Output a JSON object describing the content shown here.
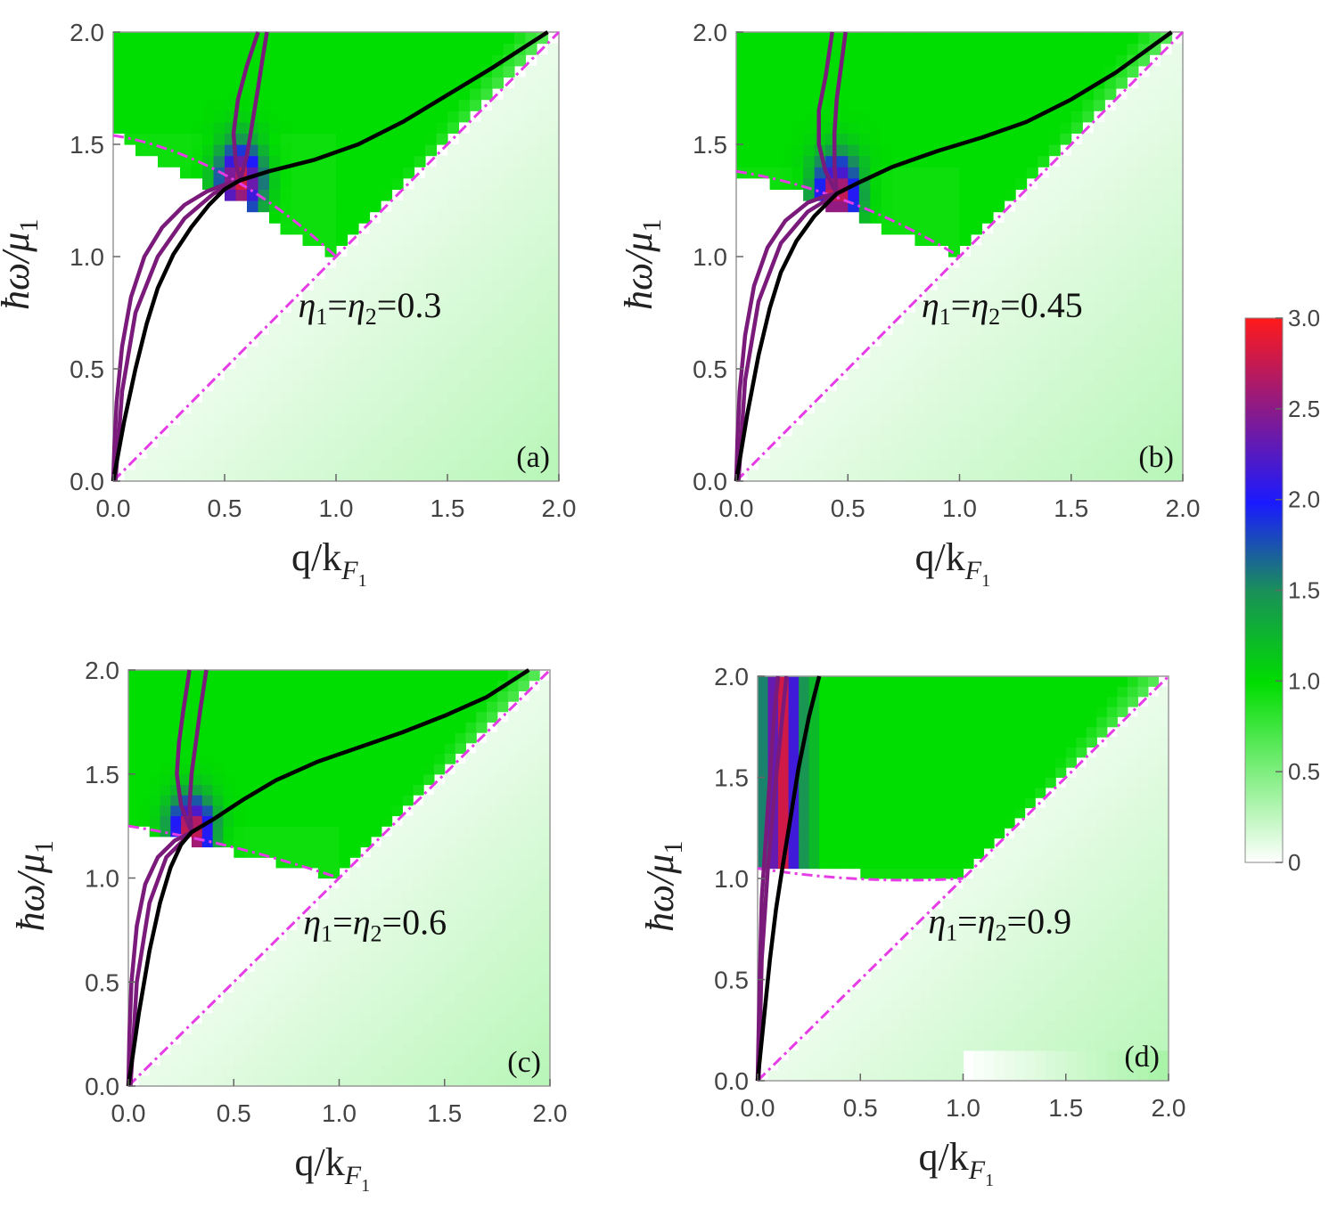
{
  "figure": {
    "colorbar": {
      "min": 0,
      "max": 3.0,
      "ticks": [
        "0",
        "0.5",
        "1.0",
        "1.5",
        "2.0",
        "2.5",
        "3.0"
      ]
    }
  },
  "colors": {
    "boundary": "#e63ce6",
    "purple_curve": "#7a1a7a",
    "black_curve": "#000000",
    "green": "#00e000",
    "blue": "#1a1aff",
    "red": "#ff1a1a"
  },
  "chart_data": [
    {
      "type": "heatmap",
      "panel_label": "(a)",
      "annotation": {
        "eta_sym1": "η",
        "sub1": "1",
        "eq1": "=",
        "eta_sym2": "η",
        "sub2": "2",
        "eq2": "=",
        "value": "0.3"
      },
      "xlabel": {
        "main": "q/k",
        "sub": "F",
        "subsub": "1"
      },
      "ylabel": {
        "main": "ħω/μ",
        "sub": "1"
      },
      "xlim": [
        0,
        2
      ],
      "ylim": [
        0,
        2
      ],
      "xticks": [
        "0.0",
        "0.5",
        "1.0",
        "1.5",
        "2.0"
      ],
      "yticks": [
        "0.0",
        "0.5",
        "1.0",
        "1.5",
        "2.0"
      ],
      "threshold_w0": 1.54,
      "crossing": [
        0.57,
        1.34
      ],
      "purple_curve": [
        [
          0.0,
          0.0
        ],
        [
          0.005,
          0.15
        ],
        [
          0.015,
          0.35
        ],
        [
          0.04,
          0.6
        ],
        [
          0.08,
          0.82
        ],
        [
          0.14,
          1.0
        ],
        [
          0.22,
          1.13
        ],
        [
          0.32,
          1.23
        ],
        [
          0.42,
          1.29
        ],
        [
          0.5,
          1.32
        ],
        [
          0.57,
          1.34
        ],
        [
          0.6,
          1.45
        ],
        [
          0.625,
          1.6
        ],
        [
          0.65,
          1.75
        ],
        [
          0.67,
          1.88
        ],
        [
          0.69,
          2.0
        ]
      ],
      "purple_curve2": [
        [
          0.01,
          0.0
        ],
        [
          0.04,
          0.4
        ],
        [
          0.1,
          0.75
        ],
        [
          0.2,
          1.0
        ],
        [
          0.32,
          1.17
        ],
        [
          0.45,
          1.28
        ],
        [
          0.57,
          1.34
        ],
        [
          0.55,
          1.42
        ],
        [
          0.54,
          1.55
        ],
        [
          0.56,
          1.7
        ],
        [
          0.6,
          1.85
        ],
        [
          0.65,
          2.0
        ]
      ],
      "black_curve": [
        [
          0.0,
          0.0
        ],
        [
          0.05,
          0.27
        ],
        [
          0.1,
          0.5
        ],
        [
          0.15,
          0.7
        ],
        [
          0.2,
          0.86
        ],
        [
          0.27,
          1.01
        ],
        [
          0.35,
          1.13
        ],
        [
          0.43,
          1.23
        ],
        [
          0.5,
          1.3
        ],
        [
          0.57,
          1.34
        ],
        [
          0.7,
          1.38
        ],
        [
          0.9,
          1.43
        ],
        [
          1.1,
          1.5
        ],
        [
          1.3,
          1.6
        ],
        [
          1.5,
          1.72
        ],
        [
          1.7,
          1.84
        ],
        [
          1.95,
          2.0
        ]
      ]
    },
    {
      "type": "heatmap",
      "panel_label": "(b)",
      "annotation": {
        "eta_sym1": "η",
        "sub1": "1",
        "eq1": "=",
        "eta_sym2": "η",
        "sub2": "2",
        "eq2": "=",
        "value": "0.45"
      },
      "xlabel": {
        "main": "q/k",
        "sub": "F",
        "subsub": "1"
      },
      "ylabel": {
        "main": "ħω/μ",
        "sub": "1"
      },
      "xlim": [
        0,
        2
      ],
      "ylim": [
        0,
        2
      ],
      "xticks": [
        "0.0",
        "0.5",
        "1.0",
        "1.5",
        "2.0"
      ],
      "yticks": [
        "0.0",
        "0.5",
        "1.0",
        "1.5",
        "2.0"
      ],
      "threshold_w0": 1.38,
      "crossing": [
        0.45,
        1.28
      ],
      "purple_curve": [
        [
          0.0,
          0.0
        ],
        [
          0.005,
          0.18
        ],
        [
          0.015,
          0.4
        ],
        [
          0.04,
          0.65
        ],
        [
          0.08,
          0.87
        ],
        [
          0.14,
          1.04
        ],
        [
          0.22,
          1.16
        ],
        [
          0.32,
          1.24
        ],
        [
          0.4,
          1.27
        ],
        [
          0.45,
          1.28
        ],
        [
          0.44,
          1.4
        ],
        [
          0.44,
          1.55
        ],
        [
          0.45,
          1.7
        ],
        [
          0.47,
          1.85
        ],
        [
          0.49,
          2.0
        ]
      ],
      "purple_curve2": [
        [
          0.01,
          0.0
        ],
        [
          0.04,
          0.45
        ],
        [
          0.1,
          0.8
        ],
        [
          0.2,
          1.06
        ],
        [
          0.32,
          1.2
        ],
        [
          0.45,
          1.28
        ],
        [
          0.4,
          1.38
        ],
        [
          0.37,
          1.5
        ],
        [
          0.37,
          1.65
        ],
        [
          0.4,
          1.8
        ],
        [
          0.43,
          2.0
        ]
      ],
      "black_curve": [
        [
          0.0,
          0.0
        ],
        [
          0.05,
          0.3
        ],
        [
          0.1,
          0.56
        ],
        [
          0.15,
          0.77
        ],
        [
          0.2,
          0.93
        ],
        [
          0.27,
          1.07
        ],
        [
          0.35,
          1.18
        ],
        [
          0.45,
          1.28
        ],
        [
          0.55,
          1.33
        ],
        [
          0.7,
          1.4
        ],
        [
          0.9,
          1.47
        ],
        [
          1.1,
          1.53
        ],
        [
          1.3,
          1.6
        ],
        [
          1.5,
          1.7
        ],
        [
          1.7,
          1.82
        ],
        [
          1.95,
          2.0
        ]
      ]
    },
    {
      "type": "heatmap",
      "panel_label": "(c)",
      "annotation": {
        "eta_sym1": "η",
        "sub1": "1",
        "eq1": "=",
        "eta_sym2": "η",
        "sub2": "2",
        "eq2": "=",
        "value": "0.6"
      },
      "xlabel": {
        "main": "q/k",
        "sub": "F",
        "subsub": "1"
      },
      "ylabel": {
        "main": "ħω/μ",
        "sub": "1"
      },
      "xlim": [
        0,
        2
      ],
      "ylim": [
        0,
        2
      ],
      "xticks": [
        "0.0",
        "0.5",
        "1.0",
        "1.5",
        "2.0"
      ],
      "yticks": [
        "0.0",
        "0.5",
        "1.0",
        "1.5",
        "2.0"
      ],
      "threshold_w0": 1.25,
      "crossing": [
        0.3,
        1.22
      ],
      "purple_curve": [
        [
          0.0,
          0.0
        ],
        [
          0.005,
          0.25
        ],
        [
          0.015,
          0.5
        ],
        [
          0.04,
          0.77
        ],
        [
          0.08,
          0.97
        ],
        [
          0.14,
          1.1
        ],
        [
          0.22,
          1.18
        ],
        [
          0.3,
          1.22
        ],
        [
          0.29,
          1.35
        ],
        [
          0.3,
          1.5
        ],
        [
          0.32,
          1.65
        ],
        [
          0.34,
          1.8
        ],
        [
          0.37,
          2.0
        ]
      ],
      "purple_curve2": [
        [
          0.01,
          0.0
        ],
        [
          0.04,
          0.5
        ],
        [
          0.1,
          0.88
        ],
        [
          0.18,
          1.1
        ],
        [
          0.3,
          1.22
        ],
        [
          0.25,
          1.35
        ],
        [
          0.23,
          1.5
        ],
        [
          0.24,
          1.65
        ],
        [
          0.26,
          1.8
        ],
        [
          0.29,
          2.0
        ]
      ],
      "black_curve": [
        [
          0.0,
          0.0
        ],
        [
          0.05,
          0.35
        ],
        [
          0.1,
          0.65
        ],
        [
          0.15,
          0.88
        ],
        [
          0.2,
          1.05
        ],
        [
          0.25,
          1.16
        ],
        [
          0.3,
          1.22
        ],
        [
          0.4,
          1.28
        ],
        [
          0.55,
          1.38
        ],
        [
          0.7,
          1.47
        ],
        [
          0.9,
          1.56
        ],
        [
          1.1,
          1.63
        ],
        [
          1.3,
          1.7
        ],
        [
          1.5,
          1.78
        ],
        [
          1.7,
          1.87
        ],
        [
          1.9,
          2.0
        ]
      ]
    },
    {
      "type": "heatmap",
      "panel_label": "(d)",
      "annotation": {
        "eta_sym1": "η",
        "sub1": "1",
        "eq1": "=",
        "eta_sym2": "η",
        "sub2": "2",
        "eq2": "=",
        "value": "0.9"
      },
      "xlabel": {
        "main": "q/k",
        "sub": "F",
        "subsub": "1"
      },
      "ylabel": {
        "main": "ħω/μ",
        "sub": "1"
      },
      "xlim": [
        0,
        2
      ],
      "ylim": [
        0,
        2
      ],
      "xticks": [
        "0.0",
        "0.5",
        "1.0",
        "1.5",
        "2.0"
      ],
      "yticks": [
        "0.0",
        "0.5",
        "1.0",
        "1.5",
        "2.0"
      ],
      "threshold_w0": 1.05,
      "crossing": [
        0.05,
        1.05
      ],
      "purple_curve": [
        [
          0.0,
          0.0
        ],
        [
          0.01,
          0.5
        ],
        [
          0.02,
          0.9
        ],
        [
          0.04,
          1.2
        ],
        [
          0.06,
          1.5
        ],
        [
          0.08,
          1.8
        ],
        [
          0.1,
          2.0
        ]
      ],
      "purple_curve2": [
        [
          0.005,
          0.0
        ],
        [
          0.02,
          0.6
        ],
        [
          0.05,
          1.05
        ],
        [
          0.08,
          1.4
        ],
        [
          0.11,
          1.7
        ],
        [
          0.14,
          2.0
        ]
      ],
      "black_curve": [
        [
          0.0,
          0.0
        ],
        [
          0.03,
          0.3
        ],
        [
          0.06,
          0.6
        ],
        [
          0.09,
          0.85
        ],
        [
          0.12,
          1.05
        ],
        [
          0.16,
          1.3
        ],
        [
          0.2,
          1.55
        ],
        [
          0.25,
          1.8
        ],
        [
          0.3,
          2.0
        ]
      ]
    }
  ]
}
